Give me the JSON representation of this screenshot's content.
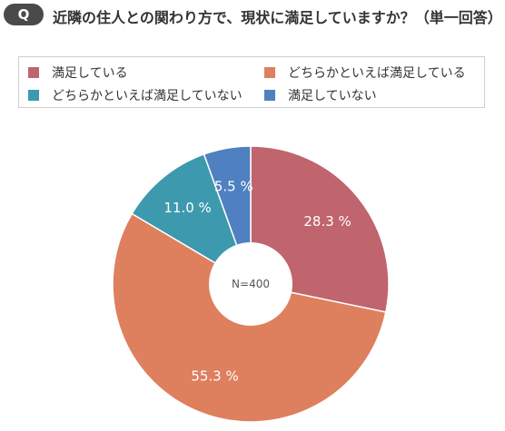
{
  "question": {
    "badge": "Q",
    "text": "近隣の住人との関わり方で、現状に満足していますか？（単一回答）"
  },
  "legend": [
    {
      "label": "満足している",
      "color": "#c0646e"
    },
    {
      "label": "どちらかといえば満足している",
      "color": "#de7f5e"
    },
    {
      "label": "どちらかといえば満足していない",
      "color": "#3d99ad"
    },
    {
      "label": "満足していない",
      "color": "#4f80c0"
    }
  ],
  "chart_data": {
    "type": "pie",
    "center_label": "N=400",
    "categories": [
      "満足している",
      "どちらかといえば満足している",
      "どちらかといえば満足していない",
      "満足していない"
    ],
    "values": [
      28.3,
      55.3,
      11.0,
      5.5
    ],
    "value_labels": [
      "28.3 %",
      "55.3 %",
      "11.0 %",
      "5.5 %"
    ],
    "colors": [
      "#c0646e",
      "#de7f5e",
      "#3d99ad",
      "#4f80c0"
    ]
  }
}
